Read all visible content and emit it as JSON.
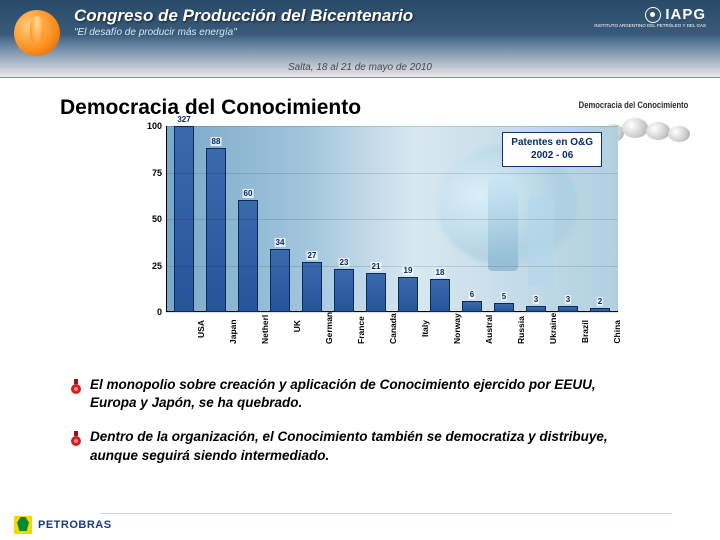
{
  "header": {
    "title": "Congreso de Producción del Bicentenario",
    "subtitle": "\"El desafío de producir más energía\"",
    "date_line": "Salta, 18 al 21 de mayo de 2010",
    "right_org": "IAPG",
    "right_org_sub": "INSTITUTO ARGENTINO\nDEL PETRÓLEO Y DEL GAS"
  },
  "slide": {
    "title": "Democracia del Conocimiento",
    "side_label": "Democracia del Conocimiento"
  },
  "chart": {
    "type": "bar",
    "box_label_line1": "Patentes en O&G",
    "box_label_line2": "2002 - 06",
    "ylim": [
      0,
      100
    ],
    "yticks": [
      0,
      25,
      50,
      75,
      100
    ],
    "bar_color": "#26549a",
    "bar_border": "#0a2a5a",
    "background_gradient": [
      "#7aa8c8",
      "#d8e8f0"
    ],
    "categories": [
      "USA",
      "Japan",
      "Netherl",
      "UK",
      "German",
      "France",
      "Canada",
      "Italy",
      "Norway",
      "Austral",
      "Russia",
      "Ukraine",
      "Brazil",
      "China"
    ],
    "values": [
      327,
      88,
      60,
      34,
      27,
      23,
      21,
      19,
      18,
      6,
      5,
      3,
      3,
      2
    ],
    "display_heights": [
      100,
      88,
      60,
      34,
      27,
      23,
      21,
      19,
      18,
      6,
      5,
      3,
      3,
      2
    ],
    "label_fontsize": 8,
    "axis_fontsize": 9
  },
  "bullets": [
    "El monopolio sobre creación y aplicación de Conocimiento ejercido por EEUU, Europa y Japón, se ha quebrado.",
    "Dentro de la organización, el Conocimiento también se democratiza y distribuye, aunque seguirá siendo intermediado."
  ],
  "footer": {
    "brand": "PETROBRAS"
  }
}
